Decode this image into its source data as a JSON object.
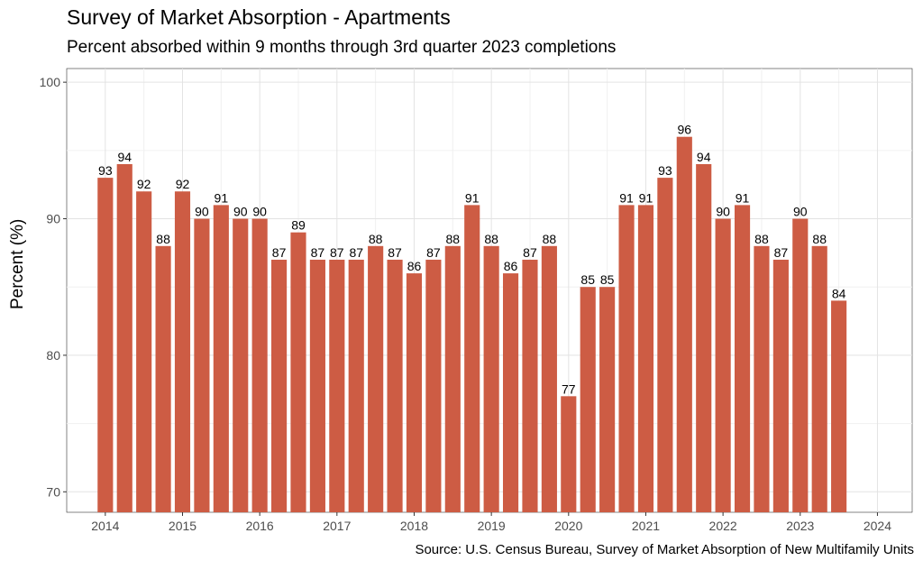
{
  "chart_data": {
    "type": "bar",
    "title": "Survey of Market Absorption - Apartments",
    "subtitle": "Percent absorbed within 9 months through 3rd quarter 2023 completions",
    "ylabel": "Percent (%)",
    "caption": "Source: U.S. Census Bureau, Survey of Market Absorption of New Multifamily Units",
    "bar_color": "#CD5C44",
    "ylim": [
      68.5,
      101
    ],
    "xlim": [
      2013.5,
      2024.45
    ],
    "y_ticks": [
      70,
      80,
      90,
      100
    ],
    "x_ticks": [
      2014,
      2015,
      2016,
      2017,
      2018,
      2019,
      2020,
      2021,
      2022,
      2023,
      2024
    ],
    "grid": true,
    "x": [
      "2014 Q1",
      "2014 Q2",
      "2014 Q3",
      "2014 Q4",
      "2015 Q1",
      "2015 Q2",
      "2015 Q3",
      "2015 Q4",
      "2016 Q1",
      "2016 Q2",
      "2016 Q3",
      "2016 Q4",
      "2017 Q1",
      "2017 Q2",
      "2017 Q3",
      "2017 Q4",
      "2018 Q1",
      "2018 Q2",
      "2018 Q3",
      "2018 Q4",
      "2019 Q1",
      "2019 Q2",
      "2019 Q3",
      "2019 Q4",
      "2020 Q1",
      "2020 Q2",
      "2020 Q3",
      "2020 Q4",
      "2021 Q1",
      "2021 Q2",
      "2021 Q3",
      "2021 Q4",
      "2022 Q1",
      "2022 Q2",
      "2022 Q3",
      "2022 Q4",
      "2023 Q1",
      "2023 Q2",
      "2023 Q3"
    ],
    "values": [
      93,
      94,
      92,
      88,
      92,
      90,
      91,
      90,
      90,
      87,
      89,
      87,
      87,
      87,
      88,
      87,
      86,
      87,
      88,
      91,
      88,
      86,
      87,
      88,
      77,
      85,
      85,
      91,
      91,
      93,
      96,
      94,
      90,
      91,
      88,
      87,
      90,
      88,
      84
    ]
  }
}
